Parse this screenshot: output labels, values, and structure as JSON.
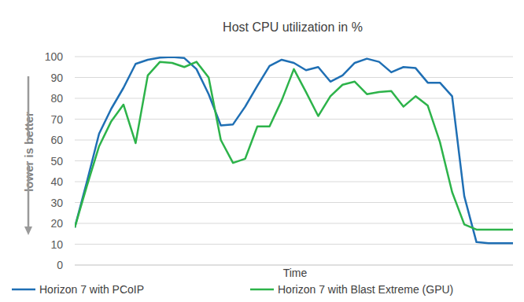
{
  "chart_data": {
    "type": "line",
    "title": "Host CPU utilization in %",
    "x_label": "Time",
    "y_label": "lower is better",
    "categories": [
      null,
      null,
      null,
      null,
      null,
      null,
      null,
      null,
      null,
      null,
      null,
      null,
      null,
      null,
      null,
      null,
      null,
      null,
      null,
      null,
      null,
      null,
      null,
      null,
      null,
      null,
      null,
      null,
      null,
      null,
      null,
      null,
      null,
      null,
      null,
      null,
      null
    ],
    "series": [
      {
        "name": "Horizon 7 with PCoIP",
        "color": "#1f6fb4",
        "values": [
          18,
          40,
          63,
          75,
          85,
          96.5,
          98.5,
          99.5,
          99.8,
          99.3,
          94,
          82,
          67,
          67.5,
          76,
          86,
          95.5,
          98.5,
          97,
          93.5,
          95,
          88,
          91,
          97,
          99,
          97.5,
          92.5,
          95,
          94.5,
          87.5,
          87.5,
          81,
          33,
          11,
          10.5,
          10.5,
          10.5
        ]
      },
      {
        "name": "Horizon 7 with Blast Extreme (GPU)",
        "color": "#2db34a",
        "values": [
          18,
          38,
          57,
          69,
          77,
          58.5,
          91,
          97.5,
          97,
          95,
          97.5,
          90,
          60,
          49,
          51,
          66.5,
          66.5,
          79,
          94,
          83,
          71.5,
          81,
          86.5,
          88,
          82,
          83,
          83.5,
          76,
          81,
          76.5,
          59,
          35,
          19.5,
          17,
          17,
          17,
          17
        ]
      }
    ],
    "ylim": [
      0,
      100
    ],
    "yticks": [
      0,
      10,
      20,
      30,
      40,
      50,
      60,
      70,
      80,
      90,
      100
    ],
    "grid": true,
    "legend": "bottom",
    "tick_labels": "y"
  }
}
